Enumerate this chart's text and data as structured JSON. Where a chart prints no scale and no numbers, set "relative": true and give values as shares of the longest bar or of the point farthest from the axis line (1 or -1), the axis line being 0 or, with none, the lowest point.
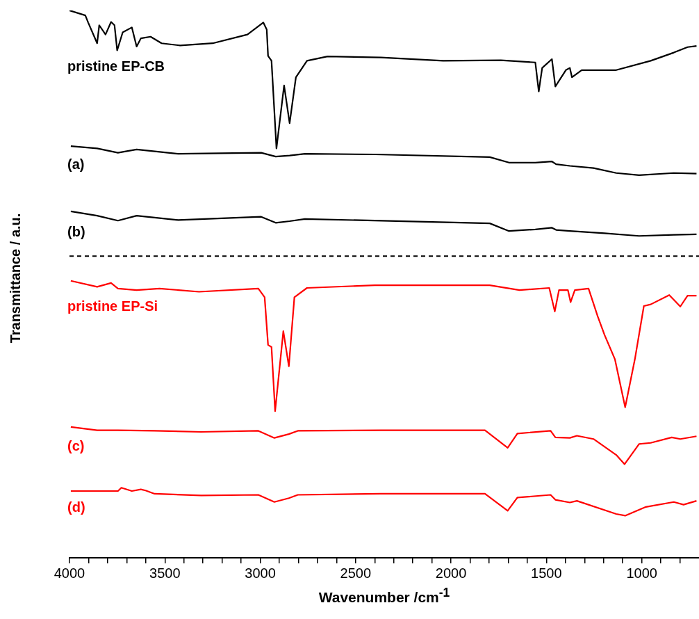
{
  "chart_data": {
    "type": "line",
    "relative": true,
    "xlabel": "Wavenumber /cm$^{-1}$",
    "ylabel": "Transmittance / a.u.",
    "legend": false,
    "marker": "none",
    "line_style": "solid",
    "xlim": [
      4000,
      700
    ],
    "xticks": [
      4000,
      {
        "value": 3900,
        "label": null
      },
      {
        "value": 3800,
        "label": null
      },
      {
        "value": 3700,
        "label": null
      },
      {
        "value": 3600,
        "label": null
      },
      3500,
      {
        "value": 3400,
        "label": null
      },
      {
        "value": 3300,
        "label": null
      },
      {
        "value": 3200,
        "label": null
      },
      {
        "value": 3100,
        "label": null
      },
      3000,
      {
        "value": 2900,
        "label": null
      },
      {
        "value": 2800,
        "label": null
      },
      {
        "value": 2700,
        "label": null
      },
      {
        "value": 2600,
        "label": null
      },
      2500,
      {
        "value": 2400,
        "label": null
      },
      {
        "value": 2300,
        "label": null
      },
      {
        "value": 2200,
        "label": null
      },
      {
        "value": 2100,
        "label": null
      },
      2000,
      {
        "value": 1900,
        "label": null
      },
      {
        "value": 1800,
        "label": null
      },
      {
        "value": 1700,
        "label": null
      },
      {
        "value": 1600,
        "label": null
      },
      1500,
      {
        "value": 1400,
        "label": null
      },
      {
        "value": 1300,
        "label": null
      },
      {
        "value": 1200,
        "label": null
      },
      {
        "value": 1100,
        "label": null
      },
      1000,
      {
        "value": 900,
        "label": null
      },
      {
        "value": 800,
        "label": null
      }
    ],
    "ref_lines": [
      {
        "axis": "y",
        "value": 0.551,
        "label": null,
        "color": "#000000",
        "line_style": "dashed"
      }
    ],
    "series": [
      {
        "name": "pristine EP-CB",
        "color": "#000000",
        "x": [
          4000,
          3917,
          3902,
          3855,
          3844,
          3811,
          3782,
          3764,
          3750,
          3721,
          3673,
          3648,
          3626,
          3575,
          3517,
          3420,
          3249,
          3067,
          2984,
          2966,
          2959,
          2941,
          2915,
          2875,
          2846,
          2813,
          2755,
          2647,
          2367,
          2041,
          1739,
          1652,
          1558,
          1540,
          1522,
          1471,
          1453,
          1398,
          1377,
          1366,
          1315,
          1134,
          953,
          832,
          760,
          713
        ],
        "values": [
          1.0,
          0.991,
          0.978,
          0.94,
          0.973,
          0.956,
          0.979,
          0.973,
          0.927,
          0.96,
          0.969,
          0.934,
          0.949,
          0.952,
          0.94,
          0.936,
          0.94,
          0.956,
          0.978,
          0.965,
          0.917,
          0.908,
          0.748,
          0.863,
          0.794,
          0.878,
          0.908,
          0.916,
          0.914,
          0.908,
          0.909,
          0.907,
          0.905,
          0.852,
          0.895,
          0.911,
          0.861,
          0.891,
          0.895,
          0.878,
          0.891,
          0.891,
          0.908,
          0.923,
          0.933,
          0.935
        ]
      },
      {
        "name": "(a)",
        "color": "#000000",
        "x": [
          3993,
          3855,
          3746,
          3648,
          3430,
          2995,
          2919,
          2846,
          2766,
          2400,
          1797,
          1696,
          1558,
          1471,
          1449,
          1377,
          1253,
          1134,
          1014,
          832,
          713
        ],
        "values": [
          0.752,
          0.748,
          0.74,
          0.746,
          0.738,
          0.74,
          0.733,
          0.735,
          0.738,
          0.737,
          0.732,
          0.722,
          0.722,
          0.724,
          0.719,
          0.716,
          0.712,
          0.703,
          0.699,
          0.703,
          0.702
        ]
      },
      {
        "name": "(b)",
        "color": "#000000",
        "x": [
          3993,
          3855,
          3746,
          3648,
          3430,
          2995,
          2919,
          2846,
          2766,
          2400,
          1797,
          1696,
          1558,
          1471,
          1449,
          1377,
          1195,
          1014,
          832,
          713
        ],
        "values": [
          0.633,
          0.625,
          0.616,
          0.625,
          0.617,
          0.623,
          0.612,
          0.615,
          0.619,
          0.616,
          0.611,
          0.597,
          0.6,
          0.603,
          0.599,
          0.597,
          0.593,
          0.588,
          0.59,
          0.591
        ]
      },
      {
        "name": "pristine EP-Si",
        "color": "#ff0000",
        "x": [
          3993,
          3855,
          3782,
          3746,
          3648,
          3528,
          3321,
          3010,
          2977,
          2959,
          2941,
          2922,
          2879,
          2850,
          2821,
          2755,
          2400,
          1797,
          1641,
          1485,
          1456,
          1434,
          1387,
          1373,
          1351,
          1279,
          1231,
          1195,
          1141,
          1087,
          1036,
          989,
          953,
          856,
          798,
          760,
          713
        ],
        "values": [
          0.506,
          0.495,
          0.502,
          0.492,
          0.489,
          0.492,
          0.486,
          0.492,
          0.476,
          0.389,
          0.385,
          0.268,
          0.414,
          0.35,
          0.476,
          0.493,
          0.498,
          0.498,
          0.489,
          0.493,
          0.45,
          0.489,
          0.489,
          0.467,
          0.489,
          0.492,
          0.441,
          0.407,
          0.363,
          0.275,
          0.363,
          0.46,
          0.463,
          0.48,
          0.459,
          0.479,
          0.479
        ]
      },
      {
        "name": "(c)",
        "color": "#ff0000",
        "x": [
          3993,
          3855,
          3746,
          3554,
          3310,
          3010,
          2926,
          2850,
          2803,
          2367,
          1822,
          1703,
          1652,
          1478,
          1453,
          1377,
          1340,
          1253,
          1134,
          1090,
          1014,
          953,
          843,
          798,
          713
        ],
        "values": [
          0.239,
          0.233,
          0.233,
          0.232,
          0.23,
          0.232,
          0.219,
          0.226,
          0.232,
          0.233,
          0.233,
          0.201,
          0.227,
          0.232,
          0.22,
          0.219,
          0.223,
          0.217,
          0.188,
          0.171,
          0.208,
          0.21,
          0.22,
          0.217,
          0.222
        ]
      },
      {
        "name": "(d)",
        "color": "#ff0000",
        "x": [
          3993,
          3746,
          3728,
          3673,
          3626,
          3601,
          3554,
          3310,
          3010,
          2926,
          2850,
          2803,
          2367,
          1822,
          1703,
          1652,
          1478,
          1453,
          1377,
          1340,
          1134,
          1087,
          978,
          832,
          781,
          713
        ],
        "values": [
          0.122,
          0.122,
          0.128,
          0.122,
          0.125,
          0.123,
          0.117,
          0.114,
          0.115,
          0.102,
          0.109,
          0.115,
          0.117,
          0.117,
          0.086,
          0.11,
          0.115,
          0.106,
          0.101,
          0.104,
          0.08,
          0.077,
          0.093,
          0.102,
          0.097,
          0.104
        ]
      }
    ]
  }
}
